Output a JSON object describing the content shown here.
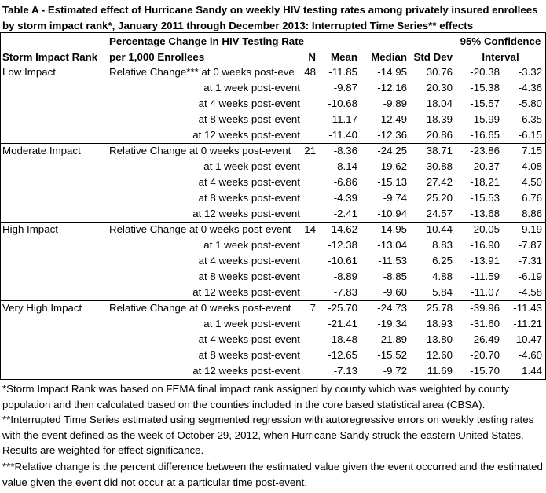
{
  "title": "Table A - Estimated effect of Hurricane Sandy on weekly HIV testing rates among privately insured enrollees by storm impact rank*, January 2011 through December 2013: Interrupted Time Series** effects",
  "headers": {
    "rank": "Storm Impact Rank",
    "pct_line1": "Percentage Change in HIV Testing Rate",
    "pct_line2": "per 1,000 Enrollees",
    "n": "N",
    "mean": "Mean",
    "median": "Median",
    "sd": "Std Dev",
    "ci_line1": "95% Confidence",
    "ci_line2": "Interval"
  },
  "groups": [
    {
      "rank": "Low Impact",
      "n": "48",
      "rows": [
        {
          "label": "Relative Change*** at 0 weeks post-eve",
          "mean": "-11.85",
          "median": "-14.95",
          "sd": "30.76",
          "lo": "-20.38",
          "hi": "-3.32"
        },
        {
          "label": "at 1 week post-event",
          "mean": "-9.87",
          "median": "-12.16",
          "sd": "20.30",
          "lo": "-15.38",
          "hi": "-4.36"
        },
        {
          "label": "at 4 weeks post-event",
          "mean": "-10.68",
          "median": "-9.89",
          "sd": "18.04",
          "lo": "-15.57",
          "hi": "-5.80"
        },
        {
          "label": "at 8 weeks post-event",
          "mean": "-11.17",
          "median": "-12.49",
          "sd": "18.39",
          "lo": "-15.99",
          "hi": "-6.35"
        },
        {
          "label": "at 12 weeks post-event",
          "mean": "-11.40",
          "median": "-12.36",
          "sd": "20.86",
          "lo": "-16.65",
          "hi": "-6.15"
        }
      ]
    },
    {
      "rank": "Moderate Impact",
      "n": "21",
      "rows": [
        {
          "label": "Relative Change at 0 weeks post-event",
          "mean": "-8.36",
          "median": "-24.25",
          "sd": "38.71",
          "lo": "-23.86",
          "hi": "7.15"
        },
        {
          "label": "at 1 week post-event",
          "mean": "-8.14",
          "median": "-19.62",
          "sd": "30.88",
          "lo": "-20.37",
          "hi": "4.08"
        },
        {
          "label": "at 4 weeks post-event",
          "mean": "-6.86",
          "median": "-15.13",
          "sd": "27.42",
          "lo": "-18.21",
          "hi": "4.50"
        },
        {
          "label": "at 8 weeks post-event",
          "mean": "-4.39",
          "median": "-9.74",
          "sd": "25.20",
          "lo": "-15.53",
          "hi": "6.76"
        },
        {
          "label": "at 12 weeks post-event",
          "mean": "-2.41",
          "median": "-10.94",
          "sd": "24.57",
          "lo": "-13.68",
          "hi": "8.86"
        }
      ]
    },
    {
      "rank": "High Impact",
      "n": "14",
      "rows": [
        {
          "label": "Relative Change at 0 weeks post-event",
          "mean": "-14.62",
          "median": "-14.95",
          "sd": "10.44",
          "lo": "-20.05",
          "hi": "-9.19"
        },
        {
          "label": "at 1 week post-event",
          "mean": "-12.38",
          "median": "-13.04",
          "sd": "8.83",
          "lo": "-16.90",
          "hi": "-7.87"
        },
        {
          "label": "at 4 weeks post-event",
          "mean": "-10.61",
          "median": "-11.53",
          "sd": "6.25",
          "lo": "-13.91",
          "hi": "-7.31"
        },
        {
          "label": "at 8 weeks post-event",
          "mean": "-8.89",
          "median": "-8.85",
          "sd": "4.88",
          "lo": "-11.59",
          "hi": "-6.19"
        },
        {
          "label": "at 12 weeks post-event",
          "mean": "-7.83",
          "median": "-9.60",
          "sd": "5.84",
          "lo": "-11.07",
          "hi": "-4.58"
        }
      ]
    },
    {
      "rank": "Very High Impact",
      "n": "7",
      "rows": [
        {
          "label": "Relative Change at 0 weeks post-event",
          "mean": "-25.70",
          "median": "-24.73",
          "sd": "25.78",
          "lo": "-39.96",
          "hi": "-11.43"
        },
        {
          "label": "at 1 week post-event",
          "mean": "-21.41",
          "median": "-19.34",
          "sd": "18.93",
          "lo": "-31.60",
          "hi": "-11.21"
        },
        {
          "label": "at 4 weeks post-event",
          "mean": "-18.48",
          "median": "-21.89",
          "sd": "13.80",
          "lo": "-26.49",
          "hi": "-10.47"
        },
        {
          "label": "at 8 weeks post-event",
          "mean": "-12.65",
          "median": "-15.52",
          "sd": "12.60",
          "lo": "-20.70",
          "hi": "-4.60"
        },
        {
          "label": "at 12 weeks post-event",
          "mean": "-7.13",
          "median": "-9.72",
          "sd": "11.69",
          "lo": "-15.70",
          "hi": "1.44"
        }
      ]
    }
  ],
  "footnotes": [
    "*Storm Impact Rank was based on FEMA final impact rank assigned by county which was weighted by county population and then calculated based on the counties included in the core based statistical area (CBSA).",
    "**Interrupted Time Series estimated using segmented regression with autoregressive errors on weekly testing rates with the event defined as the week of October 29, 2012, when Hurricane Sandy struck the eastern United States. Results are weighted for effect significance.",
    "***Relative change is the percent difference between the estimated value given the event occurred and the estimated value given the event did not occur at a particular time post-event."
  ]
}
